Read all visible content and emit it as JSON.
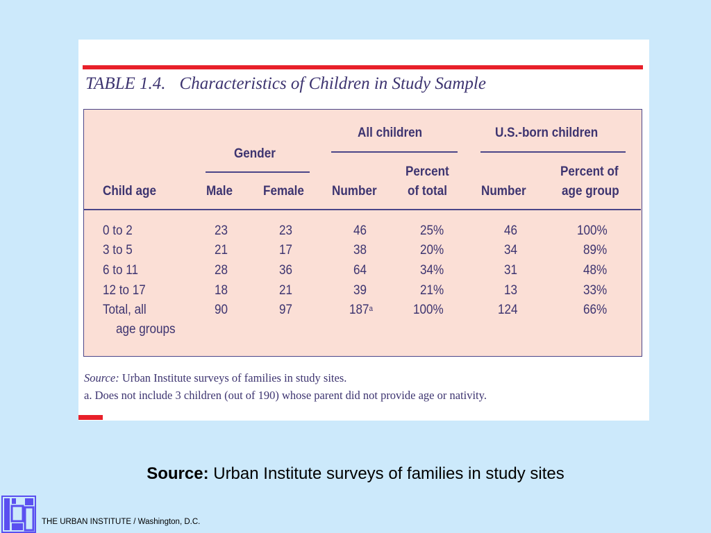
{
  "table": {
    "title_number": "TABLE 1.4.",
    "title_text": "Characteristics of Children in Study Sample",
    "headers": {
      "gender": "Gender",
      "all_children": "All children",
      "us_born_children": "U.S.-born children",
      "child_age": "Child age",
      "male": "Male",
      "female": "Female",
      "number": "Number",
      "percent_total_1": "Percent",
      "percent_total_2": "of total",
      "number2": "Number",
      "percent_age_1": "Percent of",
      "percent_age_2": "age group"
    },
    "rows": [
      {
        "age": "0 to 2",
        "male": "23",
        "female": "23",
        "number": "46",
        "pct_total": "25%",
        "us_number": "46",
        "pct_age": "100%"
      },
      {
        "age": "3 to 5",
        "male": "21",
        "female": "17",
        "number": "38",
        "pct_total": "20%",
        "us_number": "34",
        "pct_age": "89%"
      },
      {
        "age": "6 to 11",
        "male": "28",
        "female": "36",
        "number": "64",
        "pct_total": "34%",
        "us_number": "31",
        "pct_age": "48%"
      },
      {
        "age": "12 to 17",
        "male": "18",
        "female": "21",
        "number": "39",
        "pct_total": "21%",
        "us_number": "13",
        "pct_age": "33%"
      },
      {
        "age": "Total, all",
        "male": "90",
        "female": "97",
        "number": "187",
        "pct_total": "100%",
        "us_number": "124",
        "pct_age": "66%"
      }
    ],
    "total_continuation": "age groups",
    "footnote_marker": "a",
    "source_label": "Source:",
    "source_text": "Urban Institute surveys of families in study sites.",
    "footnote": "a. Does not include 3 children (out of 190) whose parent did not provide age or nativity."
  },
  "caption": {
    "label": "Source:",
    "text": "Urban Institute surveys of families in study sites"
  },
  "footer": {
    "text": "THE URBAN INSTITUTE / Washington, D.C."
  },
  "colors": {
    "background": "#cce9fb",
    "accent_red": "#e8202a",
    "table_fill": "#fbdfd6",
    "text_navy": "#3d3470",
    "logo_blue": "#5a4ff0"
  }
}
